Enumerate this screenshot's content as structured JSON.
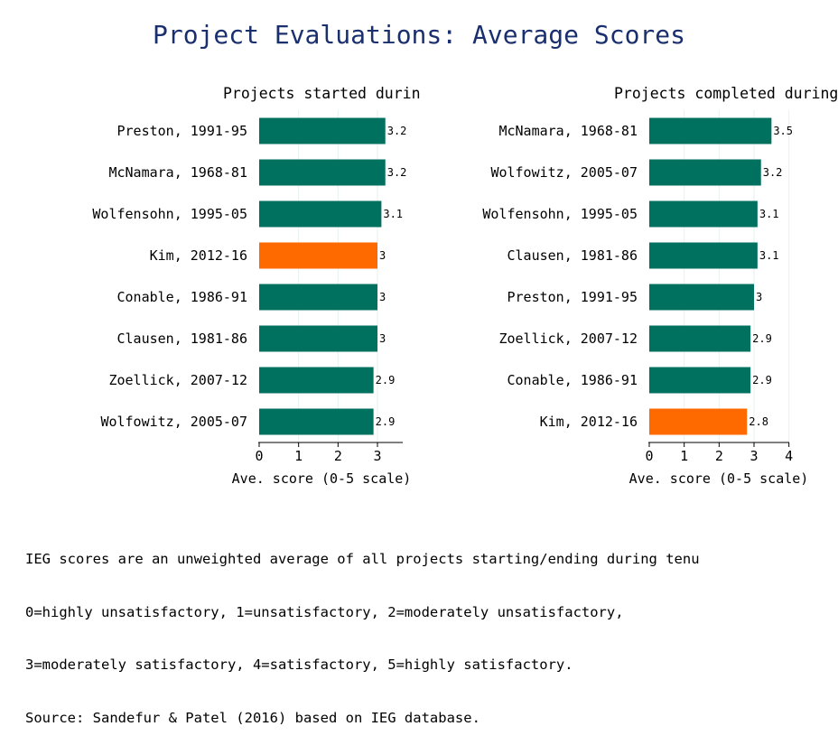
{
  "title": "Project Evaluations: Average Scores",
  "colors": {
    "title": "#1a2f6e",
    "bar": "#00705f",
    "highlight": "#ff6a00",
    "grid": "#e6f2ef"
  },
  "chart_data": [
    {
      "type": "bar",
      "orientation": "horizontal",
      "title": "Projects started during tenure",
      "xlabel": "Ave. score (0-5 scale)",
      "xlim": [
        0,
        3.6
      ],
      "xticks": [
        0,
        1,
        2,
        3
      ],
      "grid": true,
      "highlight": "Kim, 2012-16",
      "categories": [
        "Preston, 1991-95",
        "McNamara, 1968-81",
        "Wolfensohn, 1995-05",
        "Kim, 2012-16",
        "Conable, 1986-91",
        "Clausen, 1981-86",
        "Zoellick, 2007-12",
        "Wolfowitz, 2005-07"
      ],
      "values": [
        3.2,
        3.2,
        3.1,
        3.0,
        3.0,
        3.0,
        2.9,
        2.9
      ],
      "labels": [
        "3.2",
        "3.2",
        "3.1",
        "3",
        "3",
        "3",
        "2.9",
        "2.9"
      ]
    },
    {
      "type": "bar",
      "orientation": "horizontal",
      "title": "Projects completed during tenure",
      "xlabel": "Ave. score (0-5 scale)",
      "xlim": [
        0,
        4.1
      ],
      "xticks": [
        0,
        1,
        2,
        3,
        4
      ],
      "grid": true,
      "highlight": "Kim, 2012-16",
      "categories": [
        "McNamara, 1968-81",
        "Wolfowitz, 2005-07",
        "Wolfensohn, 1995-05",
        "Clausen, 1981-86",
        "Preston, 1991-95",
        "Zoellick, 2007-12",
        "Conable, 1986-91",
        "Kim, 2012-16"
      ],
      "values": [
        3.5,
        3.2,
        3.1,
        3.1,
        3.0,
        2.9,
        2.9,
        2.8
      ],
      "labels": [
        "3.5",
        "3.2",
        "3.1",
        "3.1",
        "3",
        "2.9",
        "2.9",
        "2.8"
      ]
    }
  ],
  "footnote": [
    "IEG scores are an unweighted average of all projects starting/ending during tenu",
    "0=highly unsatisfactory, 1=unsatisfactory, 2=moderately unsatisfactory,",
    "3=moderately satisfactory, 4=satisfactory, 5=highly satisfactory.",
    "Source: Sandefur & Patel (2016) based on IEG database."
  ]
}
